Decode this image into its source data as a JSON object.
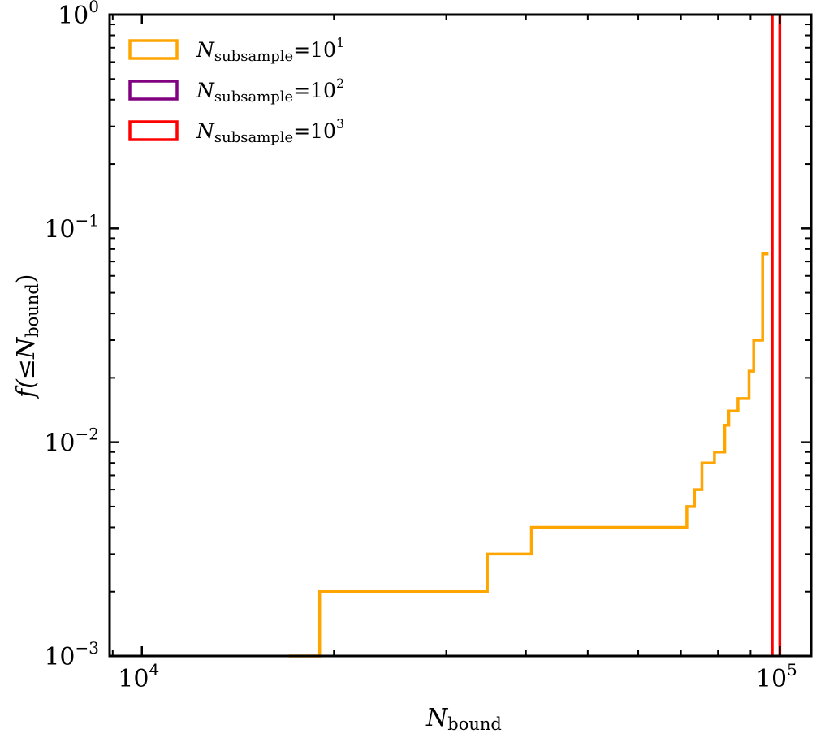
{
  "chart_data": {
    "type": "step",
    "xscale": "log",
    "yscale": "log",
    "xlim": [
      8900,
      112000
    ],
    "ylim": [
      0.001,
      1
    ],
    "xlabel": {
      "base": "N",
      "sub": "bound"
    },
    "ylabel": {
      "prefix": "f(≤",
      "base": "N",
      "sub": "bound",
      "suffix": ")"
    },
    "x_ticks": [
      {
        "value": 10000,
        "base": "10",
        "exp": "4"
      },
      {
        "value": 100000,
        "base": "10",
        "exp": "5"
      }
    ],
    "y_ticks": [
      {
        "value": 0.001,
        "base": "10",
        "exp": "−3"
      },
      {
        "value": 0.01,
        "base": "10",
        "exp": "−2"
      },
      {
        "value": 0.1,
        "base": "10",
        "exp": "−1"
      },
      {
        "value": 1,
        "base": "10",
        "exp": "0"
      }
    ],
    "legend": {
      "location": "upper-left",
      "entries": [
        {
          "base": "N",
          "sub": "subsample",
          "eq": "=10",
          "exp": "1",
          "color": "#FFA500"
        },
        {
          "base": "N",
          "sub": "subsample",
          "eq": "=10",
          "exp": "2",
          "color": "#800080"
        },
        {
          "base": "N",
          "sub": "subsample",
          "eq": "=10",
          "exp": "3",
          "color": "#FF0000"
        }
      ]
    },
    "series": [
      {
        "name": "N_subsample=10^1",
        "color": "#FFA500",
        "x": [
          17000,
          19000,
          34800,
          40800,
          71500,
          73500,
          75500,
          79000,
          82000,
          83200,
          86000,
          89500,
          91000,
          94000,
          96000
        ],
        "y": [
          0.001,
          0.002,
          0.003,
          0.004,
          0.005,
          0.006,
          0.008,
          0.009,
          0.012,
          0.014,
          0.016,
          0.0215,
          0.03,
          0.076,
          0.076
        ]
      },
      {
        "name": "N_subsample=10^3",
        "color": "#FF0000",
        "kind": "vertical-lines",
        "x": [
          97300,
          100000
        ]
      }
    ]
  }
}
